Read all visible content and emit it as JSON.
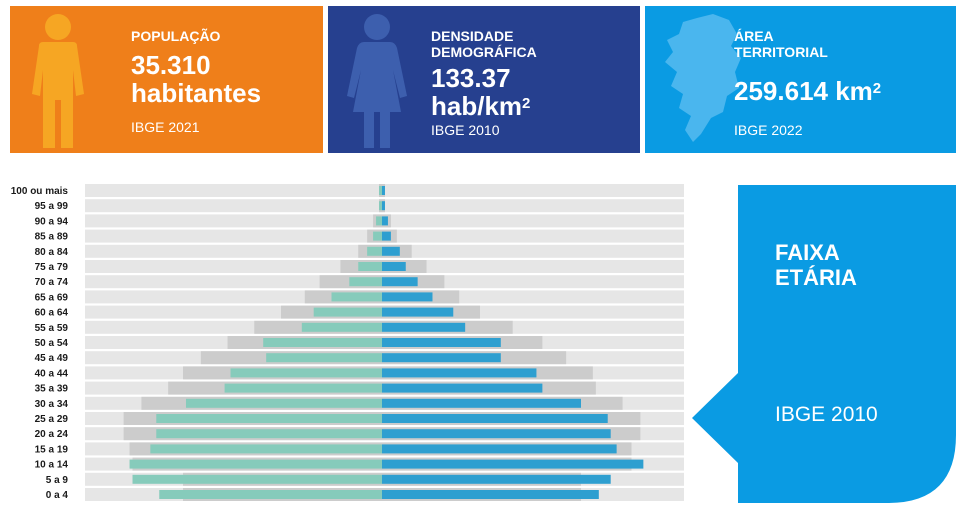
{
  "cards": [
    {
      "label_lines": [
        "POPULAÇÃO"
      ],
      "value_lines": [
        "35.310",
        "habitantes"
      ],
      "value_sup": "",
      "source": "IBGE 2021",
      "bg": "#ef7f1a",
      "icon": "person-icon",
      "icon_color": "#f6a623"
    },
    {
      "label_lines": [
        "DENSIDADE",
        "DEMOGRÁFICA"
      ],
      "value_lines": [
        "133.37",
        "hab/km"
      ],
      "value_sup": "2",
      "source": "IBGE 2010",
      "bg": "#26408f",
      "icon": "woman-icon",
      "icon_color": "#3d5fae"
    },
    {
      "label_lines": [
        "ÁREA",
        "TERRITORIAL"
      ],
      "value_lines": [
        "259.614 km"
      ],
      "value_sup": "2",
      "source": "IBGE 2022",
      "bg": "#0a9be3",
      "icon": "territory-map-icon",
      "icon_color": "#4ab6ee"
    }
  ],
  "panel": {
    "title_lines": [
      "FAIXA",
      "ETÁRIA"
    ],
    "source": "IBGE 2010",
    "bg": "#0a9be3"
  },
  "chart_data": {
    "type": "bar",
    "orientation": "horizontal-pyramid",
    "categories": [
      "100 ou mais",
      "95 a 99",
      "90 a 94",
      "85 a 89",
      "80 a 84",
      "75 a 79",
      "70 a 74",
      "65 a 69",
      "60 a 64",
      "55 a 59",
      "50 a 54",
      "45 a 49",
      "40 a 44",
      "35 a 39",
      "30 a 34",
      "25 a 29",
      "20 a 24",
      "15 a 19",
      "10 a 14",
      "5 a 9",
      "0 a 4"
    ],
    "series": [
      {
        "side": "left",
        "color": "#86cbbb",
        "values": [
          1,
          1,
          2,
          3,
          5,
          8,
          11,
          17,
          23,
          27,
          40,
          39,
          51,
          53,
          66,
          76,
          76,
          78,
          85,
          84,
          75
        ]
      },
      {
        "side": "right",
        "color": "#2e9fd0",
        "values": [
          1,
          1,
          2,
          3,
          6,
          8,
          12,
          17,
          24,
          28,
          40,
          40,
          52,
          54,
          67,
          76,
          77,
          79,
          88,
          77,
          73
        ]
      }
    ],
    "background_series": [
      {
        "side": "left",
        "color": "#cccccc",
        "values": [
          1,
          1,
          3,
          5,
          8,
          14,
          21,
          26,
          34,
          43,
          52,
          61,
          67,
          72,
          81,
          87,
          87,
          85,
          84,
          67,
          67
        ]
      },
      {
        "side": "right",
        "color": "#cccccc",
        "values": [
          1,
          1,
          3,
          5,
          10,
          15,
          21,
          26,
          33,
          44,
          54,
          62,
          71,
          72,
          81,
          87,
          87,
          84,
          84,
          67,
          67
        ]
      }
    ],
    "xlim": [
      0,
      100
    ],
    "grid": true
  }
}
